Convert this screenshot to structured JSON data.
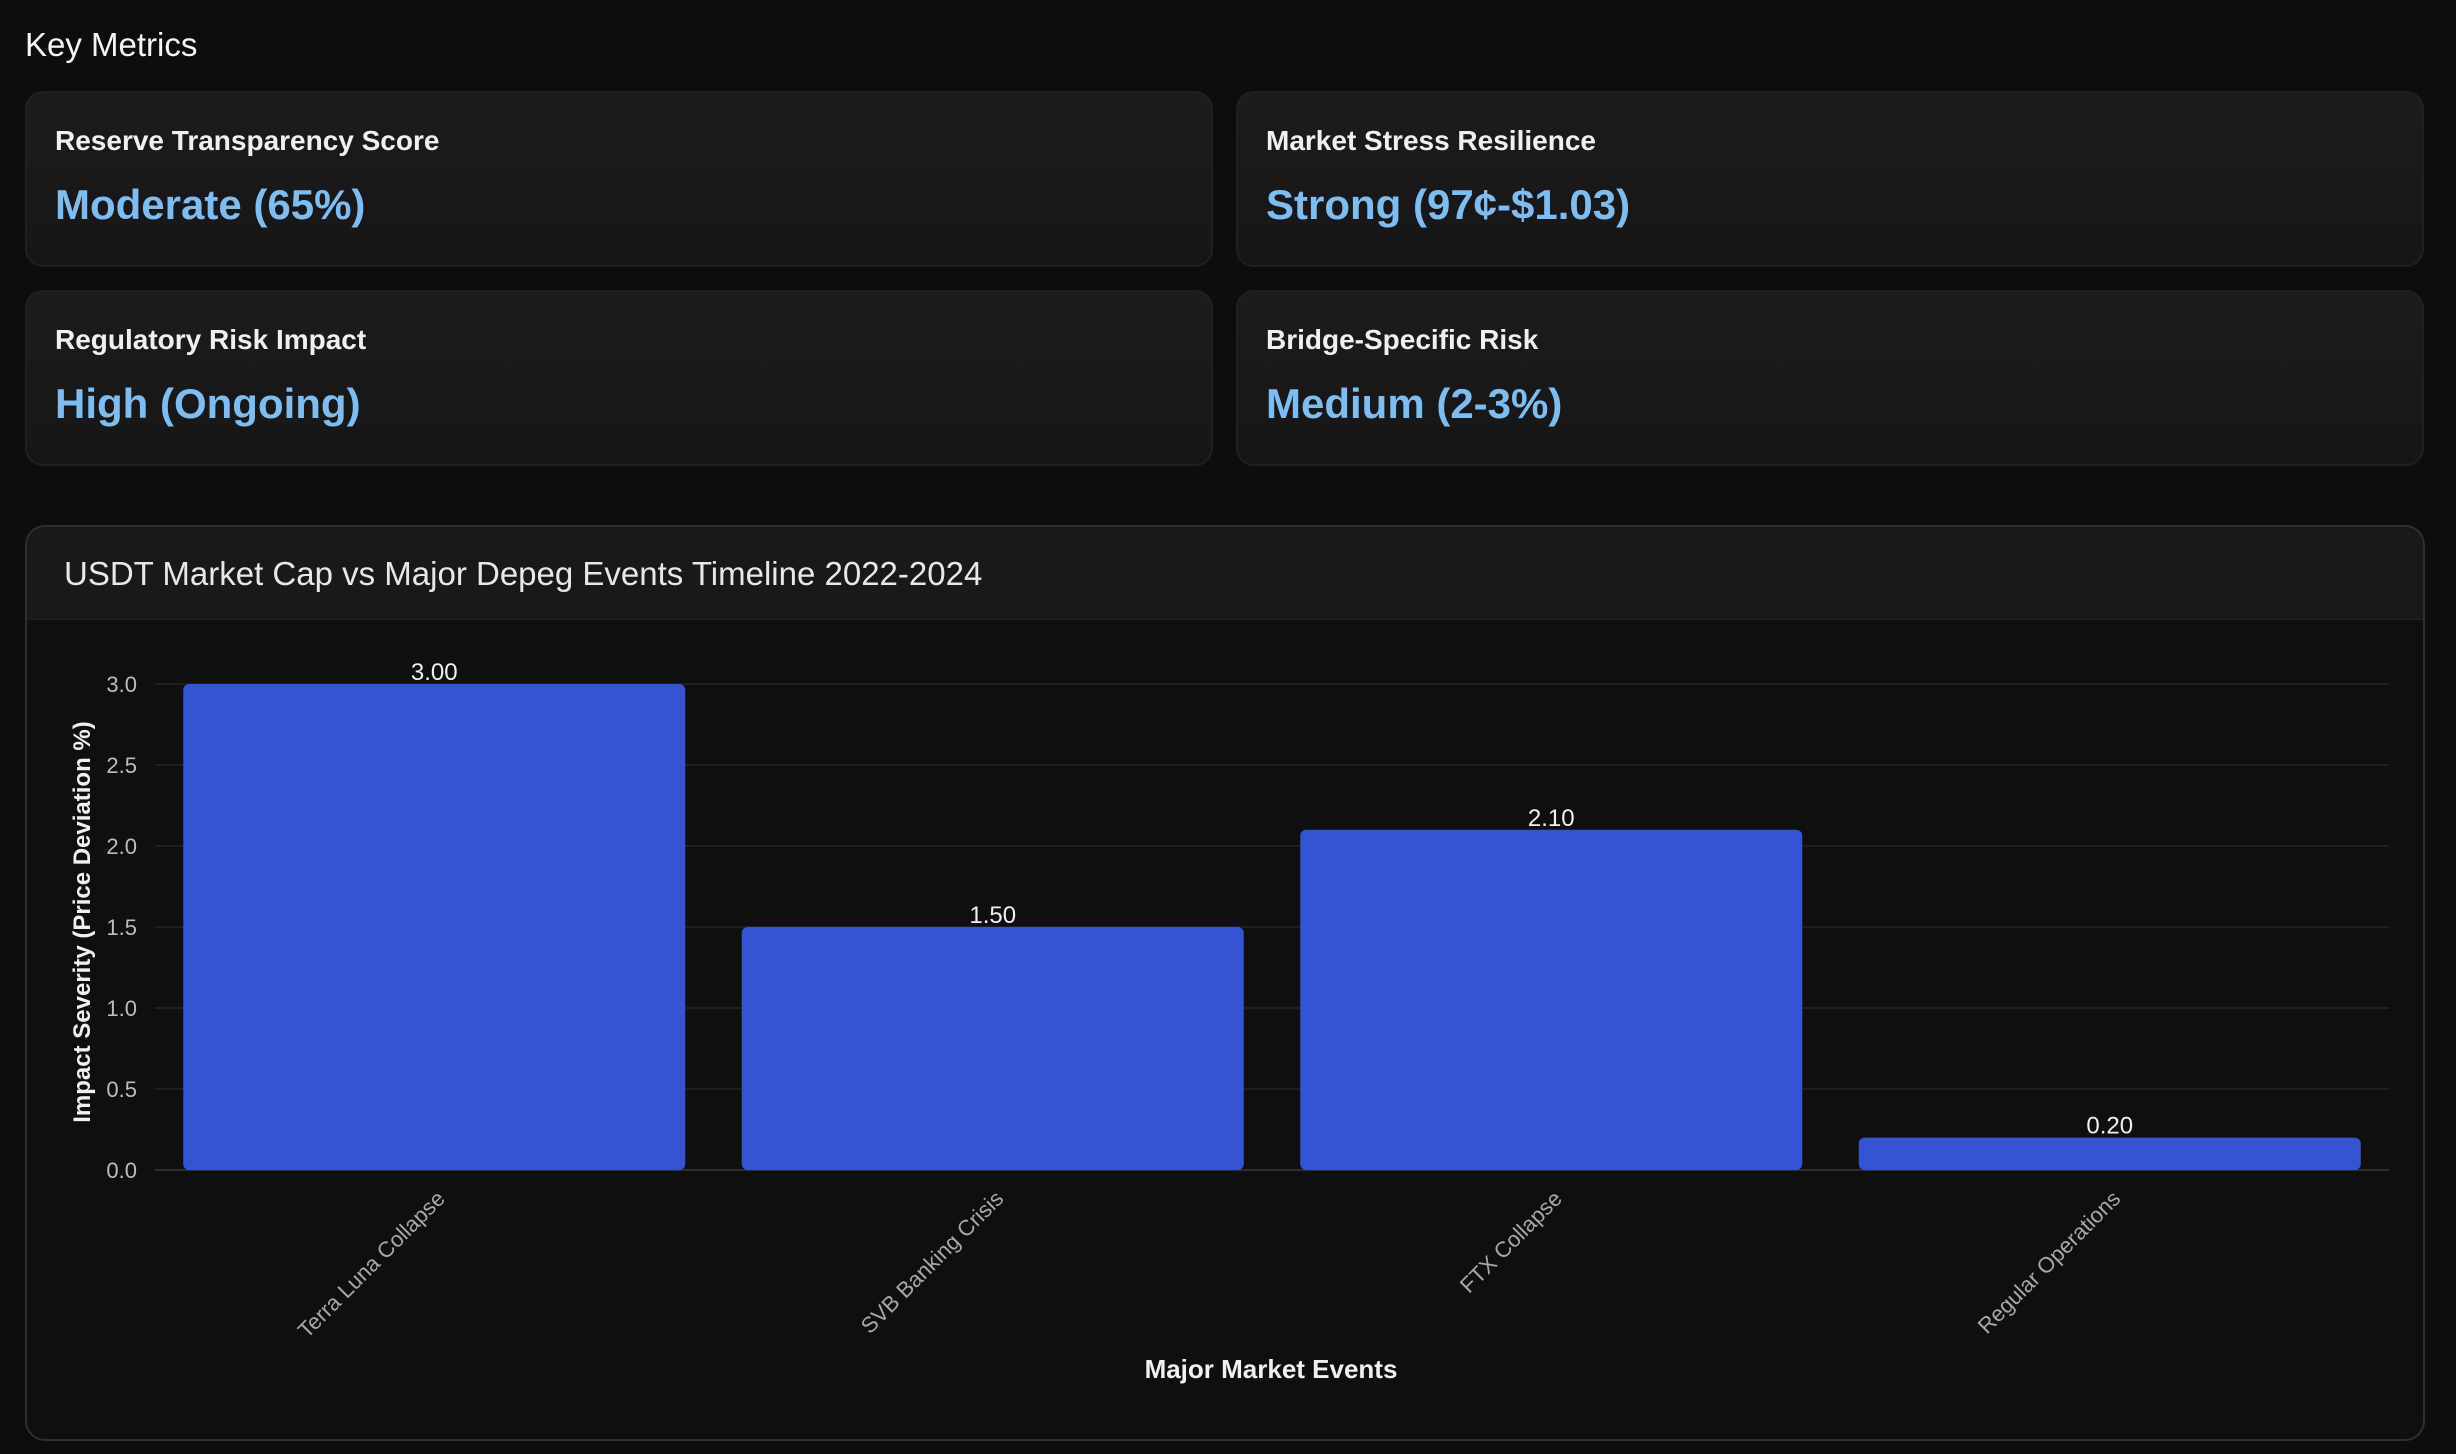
{
  "key_metrics": {
    "title": "Key Metrics",
    "cards": [
      {
        "label": "Reserve Transparency Score",
        "value": "Moderate (65%)"
      },
      {
        "label": "Market Stress Resilience",
        "value": "Strong (97¢-$1.03)"
      },
      {
        "label": "Regulatory Risk Impact",
        "value": "High (Ongoing)"
      },
      {
        "label": "Bridge-Specific Risk",
        "value": "Medium (2-3%)"
      }
    ]
  },
  "colors": {
    "bar": "#3355d4",
    "metric_value": "#7fbdf0",
    "background": "#0d0d0d"
  },
  "chart_data": {
    "type": "bar",
    "title": "USDT Market Cap vs Major Depeg Events Timeline 2022-2024",
    "xlabel": "Major Market Events",
    "ylabel": "Impact Severity (Price Deviation %)",
    "categories": [
      "Terra Luna Collapse",
      "SVB Banking Crisis",
      "FTX Collapse",
      "Regular Operations"
    ],
    "values": [
      3.0,
      1.5,
      2.1,
      0.2
    ],
    "value_labels": [
      "3.00",
      "1.50",
      "2.10",
      "0.20"
    ],
    "yticks": [
      "0.0",
      "0.5",
      "1.0",
      "1.5",
      "2.0",
      "2.5",
      "3.0"
    ],
    "ylim": [
      0,
      3.0
    ],
    "grid": true,
    "legend": "none"
  }
}
